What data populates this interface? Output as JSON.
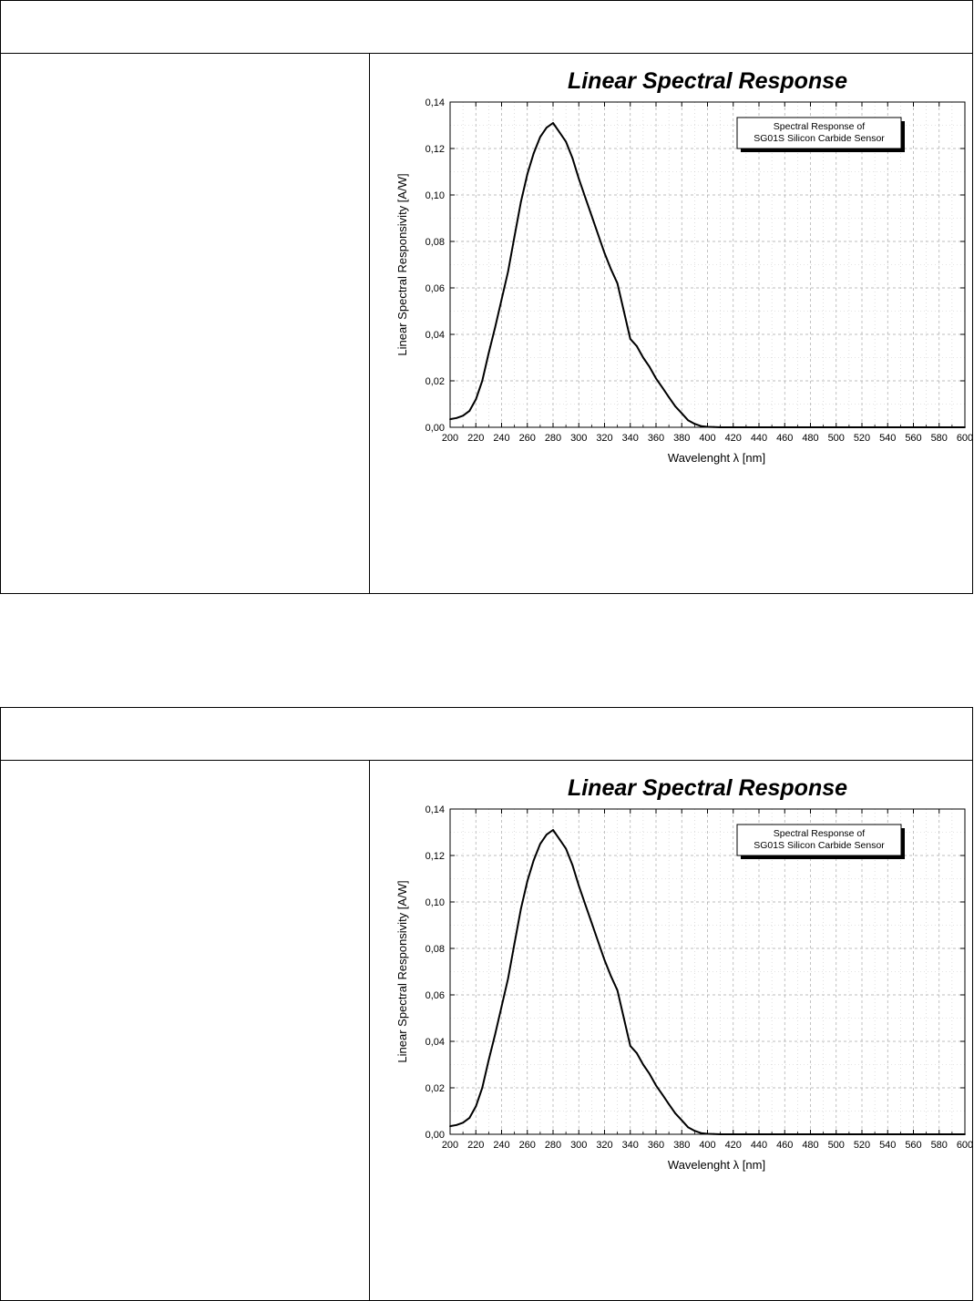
{
  "chart_data": [
    {
      "type": "line",
      "title": "Linear Spectral Response",
      "xlabel": "Wavelenght λ [nm]",
      "ylabel": "Linear Spectral Responsivity  [A/W]",
      "xlim": [
        200,
        600
      ],
      "ylim": [
        0,
        0.14
      ],
      "x_ticks": [
        200,
        220,
        240,
        260,
        280,
        300,
        320,
        340,
        360,
        380,
        400,
        420,
        440,
        460,
        480,
        500,
        520,
        540,
        560,
        580,
        600
      ],
      "x_tick_labels": [
        "200",
        "220",
        "240",
        "260",
        "280",
        "300",
        "320",
        "340",
        "360",
        "380",
        "400",
        "420",
        "440",
        "460",
        "480",
        "500",
        "520",
        "540",
        "560",
        "580",
        "600"
      ],
      "y_ticks": [
        0,
        0.02,
        0.04,
        0.06,
        0.08,
        0.1,
        0.12,
        0.14
      ],
      "y_tick_labels": [
        "0,00",
        "0,02",
        "0,04",
        "0,06",
        "0,08",
        "0,10",
        "0,12",
        "0,14"
      ],
      "grid": true,
      "legend_position": "top-right",
      "legend_lines": [
        "Spectral Response of",
        "SG01S Silicon Carbide Sensor"
      ],
      "series": [
        {
          "x": [
            200,
            205,
            210,
            215,
            220,
            225,
            230,
            235,
            240,
            245,
            250,
            255,
            260,
            265,
            270,
            275,
            280,
            285,
            290,
            295,
            300,
            305,
            310,
            315,
            320,
            325,
            330,
            335,
            340,
            345,
            350,
            355,
            360,
            365,
            370,
            375,
            380,
            385,
            390,
            395,
            400,
            405,
            410,
            415,
            420,
            440,
            460,
            480,
            500,
            520,
            540,
            560,
            580,
            600
          ],
          "y": [
            0.0035,
            0.004,
            0.005,
            0.007,
            0.012,
            0.02,
            0.032,
            0.043,
            0.055,
            0.067,
            0.082,
            0.097,
            0.109,
            0.118,
            0.125,
            0.129,
            0.131,
            0.127,
            0.123,
            0.116,
            0.107,
            0.099,
            0.091,
            0.083,
            0.075,
            0.068,
            0.062,
            0.05,
            0.038,
            0.035,
            0.03,
            0.026,
            0.021,
            0.017,
            0.013,
            0.009,
            0.006,
            0.003,
            0.0015,
            0.0005,
            0.0002,
            0.0001,
            0.0,
            0.0,
            0.0,
            0.0,
            0.0,
            0.0,
            0.0,
            0.0,
            0.0,
            0.0,
            0.0,
            0.0
          ]
        }
      ]
    },
    {
      "type": "line",
      "title": "Linear Spectral Response",
      "xlabel": "Wavelenght λ [nm]",
      "ylabel": "Linear Spectral Responsivity  [A/W]",
      "xlim": [
        200,
        600
      ],
      "ylim": [
        0,
        0.14
      ],
      "x_ticks": [
        200,
        220,
        240,
        260,
        280,
        300,
        320,
        340,
        360,
        380,
        400,
        420,
        440,
        460,
        480,
        500,
        520,
        540,
        560,
        580,
        600
      ],
      "x_tick_labels": [
        "200",
        "220",
        "240",
        "260",
        "280",
        "300",
        "320",
        "340",
        "360",
        "380",
        "400",
        "420",
        "440",
        "460",
        "480",
        "500",
        "520",
        "540",
        "560",
        "580",
        "600"
      ],
      "y_ticks": [
        0,
        0.02,
        0.04,
        0.06,
        0.08,
        0.1,
        0.12,
        0.14
      ],
      "y_tick_labels": [
        "0,00",
        "0,02",
        "0,04",
        "0,06",
        "0,08",
        "0,10",
        "0,12",
        "0,14"
      ],
      "grid": true,
      "legend_position": "top-right",
      "legend_lines": [
        "Spectral Response of",
        "SG01S Silicon Carbide Sensor"
      ],
      "series": [
        {
          "x": [
            200,
            205,
            210,
            215,
            220,
            225,
            230,
            235,
            240,
            245,
            250,
            255,
            260,
            265,
            270,
            275,
            280,
            285,
            290,
            295,
            300,
            305,
            310,
            315,
            320,
            325,
            330,
            335,
            340,
            345,
            350,
            355,
            360,
            365,
            370,
            375,
            380,
            385,
            390,
            395,
            400,
            405,
            410,
            415,
            420,
            440,
            460,
            480,
            500,
            520,
            540,
            560,
            580,
            600
          ],
          "y": [
            0.0035,
            0.004,
            0.005,
            0.007,
            0.012,
            0.02,
            0.032,
            0.043,
            0.055,
            0.067,
            0.082,
            0.097,
            0.109,
            0.118,
            0.125,
            0.129,
            0.131,
            0.127,
            0.123,
            0.116,
            0.107,
            0.099,
            0.091,
            0.083,
            0.075,
            0.068,
            0.062,
            0.05,
            0.038,
            0.035,
            0.03,
            0.026,
            0.021,
            0.017,
            0.013,
            0.009,
            0.006,
            0.003,
            0.0015,
            0.0005,
            0.0002,
            0.0001,
            0.0,
            0.0,
            0.0,
            0.0,
            0.0,
            0.0,
            0.0,
            0.0,
            0.0,
            0.0,
            0.0,
            0.0
          ]
        }
      ]
    }
  ]
}
